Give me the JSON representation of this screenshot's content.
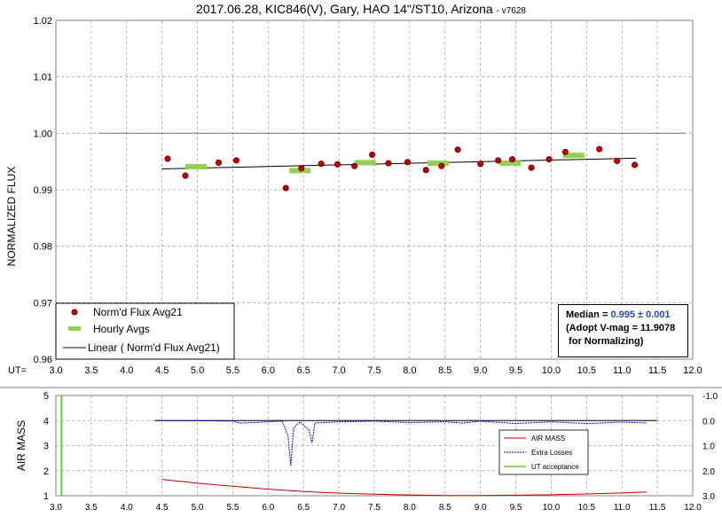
{
  "title": "2017.06.28, KIC846(V), Gary, HAO 14\"/ST10, Arizona",
  "version": "- v7628",
  "median_box": {
    "label": "Median = ",
    "value": "0.995 ± 0.001",
    "line2": "(Adopt V-mag = 11.9078",
    "line3": " for Normalizing)"
  },
  "colors": {
    "flux_points": "#c00000",
    "hourly": "#92d050",
    "trend": "#000000",
    "airmass": "#c00000",
    "losses": "#0000cc",
    "ut_accept": "#66cc33",
    "grid": "#a0a0a0"
  },
  "chart_data": [
    {
      "type": "scatter",
      "title": "2017.06.28, KIC846(V), Gary, HAO 14\"/ST10, Arizona",
      "ylabel": "NORMALIZED FLUX",
      "xlabel": "UT=",
      "xlim": [
        3.0,
        12.0
      ],
      "ylim": [
        0.96,
        1.02
      ],
      "x_ticks": [
        "3.0",
        "3.5",
        "4.0",
        "4.5",
        "5.0",
        "5.5",
        "6.0",
        "6.5",
        "7.0",
        "7.5",
        "8.0",
        "8.5",
        "9.0",
        "9.5",
        "10.0",
        "10.5",
        "11.0",
        "11.5",
        "12.0"
      ],
      "y_ticks": [
        "0.96",
        "0.97",
        "0.98",
        "0.99",
        "1.00",
        "1.01",
        "1.02"
      ],
      "grid": true,
      "legend_position": "bottom-left",
      "reference_line": {
        "y": 1.0,
        "x": [
          3.6,
          11.9
        ]
      },
      "series": [
        {
          "name": "Norm'd Flux Avg21",
          "points": [
            [
              4.58,
              0.9955
            ],
            [
              4.83,
              0.9925
            ],
            [
              5.3,
              0.9948
            ],
            [
              5.55,
              0.9952
            ],
            [
              6.25,
              0.9903
            ],
            [
              6.47,
              0.9938
            ],
            [
              6.75,
              0.9946
            ],
            [
              6.98,
              0.9945
            ],
            [
              7.22,
              0.9942
            ],
            [
              7.47,
              0.9962
            ],
            [
              7.7,
              0.9947
            ],
            [
              7.97,
              0.9949
            ],
            [
              8.23,
              0.9935
            ],
            [
              8.45,
              0.9942
            ],
            [
              8.68,
              0.9971
            ],
            [
              9.0,
              0.9946
            ],
            [
              9.25,
              0.9952
            ],
            [
              9.45,
              0.9954
            ],
            [
              9.72,
              0.9939
            ],
            [
              9.97,
              0.9954
            ],
            [
              10.2,
              0.9967
            ],
            [
              10.68,
              0.9972
            ],
            [
              10.93,
              0.9951
            ],
            [
              11.18,
              0.9944
            ]
          ]
        },
        {
          "name": "Hourly Avgs",
          "points": [
            [
              4.98,
              0.9941
            ],
            [
              6.45,
              0.9934
            ],
            [
              7.37,
              0.9948
            ],
            [
              8.4,
              0.9947
            ],
            [
              9.42,
              0.9947
            ],
            [
              10.32,
              0.9961
            ]
          ]
        },
        {
          "name": "Linear ( Norm'd Flux Avg21)",
          "points": [
            [
              4.5,
              0.9937
            ],
            [
              11.2,
              0.9956
            ]
          ]
        }
      ]
    },
    {
      "type": "line",
      "ylabel": "AIR MASS",
      "xlim": [
        3.0,
        12.0
      ],
      "ylim": [
        1,
        5
      ],
      "y2lim": [
        -1.0,
        3.0
      ],
      "x_ticks": [
        "3.0",
        "3.5",
        "4.0",
        "4.5",
        "5.0",
        "5.5",
        "6.0",
        "6.5",
        "7.0",
        "7.5",
        "8.0",
        "8.5",
        "9.0",
        "9.5",
        "10.0",
        "10.5",
        "11.0",
        "11.5",
        "12.0"
      ],
      "y_ticks": [
        "1",
        "2",
        "3",
        "4",
        "5"
      ],
      "y2_ticks": [
        "-1.0",
        "0.0",
        "1.0",
        "2.0",
        "3.0"
      ],
      "legend_position": "right",
      "series": [
        {
          "name": "AIR MASS",
          "points": [
            [
              4.5,
              1.65
            ],
            [
              5.0,
              1.5
            ],
            [
              5.5,
              1.38
            ],
            [
              6.0,
              1.26
            ],
            [
              6.5,
              1.17
            ],
            [
              7.0,
              1.1
            ],
            [
              7.5,
              1.06
            ],
            [
              8.0,
              1.03
            ],
            [
              8.5,
              1.01
            ],
            [
              9.0,
              1.01
            ],
            [
              9.5,
              1.02
            ],
            [
              10.0,
              1.04
            ],
            [
              10.5,
              1.07
            ],
            [
              11.0,
              1.11
            ],
            [
              11.35,
              1.15
            ]
          ]
        },
        {
          "name": "Extra Losses",
          "points": [
            [
              4.4,
              0.0
            ],
            [
              5.5,
              0.02
            ],
            [
              5.6,
              0.1
            ],
            [
              5.8,
              0.08
            ],
            [
              6.2,
              0.02
            ],
            [
              6.28,
              0.6
            ],
            [
              6.32,
              1.8
            ],
            [
              6.36,
              0.3
            ],
            [
              6.45,
              0.05
            ],
            [
              6.58,
              0.4
            ],
            [
              6.62,
              0.9
            ],
            [
              6.66,
              0.1
            ],
            [
              7.0,
              0.05
            ],
            [
              7.5,
              0.02
            ],
            [
              8.0,
              0.08
            ],
            [
              8.5,
              0.05
            ],
            [
              8.75,
              0.1
            ],
            [
              9.0,
              0.02
            ],
            [
              9.5,
              0.12
            ],
            [
              10.0,
              0.05
            ],
            [
              10.5,
              0.12
            ],
            [
              11.0,
              0.06
            ],
            [
              11.35,
              0.1
            ]
          ]
        },
        {
          "name": "UT acceptance",
          "points": [
            [
              3.08,
              1
            ],
            [
              3.08,
              5
            ]
          ]
        }
      ]
    }
  ]
}
